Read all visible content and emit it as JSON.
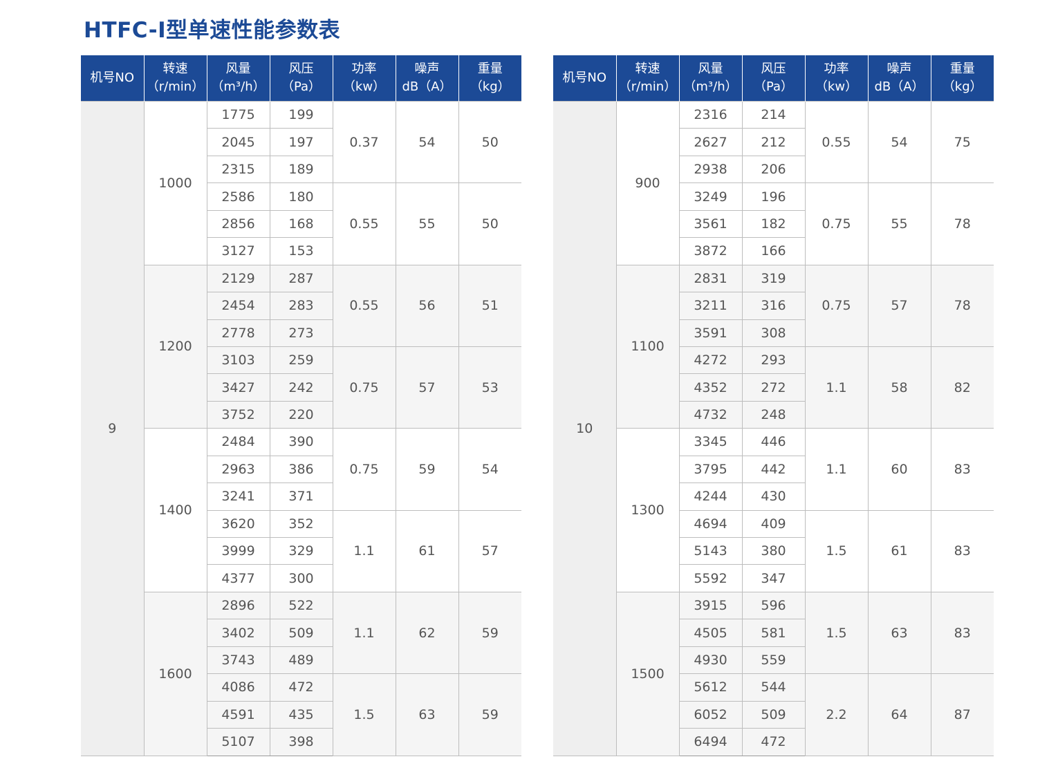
{
  "title": "HTFC-I型单速性能参数表",
  "header": [
    {
      "l1": "机号NO",
      "l2": ""
    },
    {
      "l1": "转速",
      "l2": "（r/min）"
    },
    {
      "l1": "风量",
      "l2": "（m³/h）"
    },
    {
      "l1": "风压",
      "l2": "（Pa）"
    },
    {
      "l1": "功率",
      "l2": "（kw）"
    },
    {
      "l1": "噪声",
      "l2": "dB（A）"
    },
    {
      "l1": "重量",
      "l2": "（kg）"
    }
  ],
  "colors": {
    "header_bg": "#1c4a96",
    "title": "#1c4a96"
  },
  "tables": [
    {
      "machine_no": "9",
      "speeds": [
        {
          "rpm": "1000",
          "groups": [
            {
              "power": "0.37",
              "noise": "54",
              "weight": "50",
              "rows": [
                [
                  "1775",
                  "199"
                ],
                [
                  "2045",
                  "197"
                ],
                [
                  "2315",
                  "189"
                ]
              ]
            },
            {
              "power": "0.55",
              "noise": "55",
              "weight": "50",
              "rows": [
                [
                  "2586",
                  "180"
                ],
                [
                  "2856",
                  "168"
                ],
                [
                  "3127",
                  "153"
                ]
              ]
            }
          ]
        },
        {
          "rpm": "1200",
          "groups": [
            {
              "power": "0.55",
              "noise": "56",
              "weight": "51",
              "rows": [
                [
                  "2129",
                  "287"
                ],
                [
                  "2454",
                  "283"
                ],
                [
                  "2778",
                  "273"
                ]
              ]
            },
            {
              "power": "0.75",
              "noise": "57",
              "weight": "53",
              "rows": [
                [
                  "3103",
                  "259"
                ],
                [
                  "3427",
                  "242"
                ],
                [
                  "3752",
                  "220"
                ]
              ]
            }
          ]
        },
        {
          "rpm": "1400",
          "groups": [
            {
              "power": "0.75",
              "noise": "59",
              "weight": "54",
              "rows": [
                [
                  "2484",
                  "390"
                ],
                [
                  "2963",
                  "386"
                ],
                [
                  "3241",
                  "371"
                ]
              ]
            },
            {
              "power": "1.1",
              "noise": "61",
              "weight": "57",
              "rows": [
                [
                  "3620",
                  "352"
                ],
                [
                  "3999",
                  "329"
                ],
                [
                  "4377",
                  "300"
                ]
              ]
            }
          ]
        },
        {
          "rpm": "1600",
          "groups": [
            {
              "power": "1.1",
              "noise": "62",
              "weight": "59",
              "rows": [
                [
                  "2896",
                  "522"
                ],
                [
                  "3402",
                  "509"
                ],
                [
                  "3743",
                  "489"
                ]
              ]
            },
            {
              "power": "1.5",
              "noise": "63",
              "weight": "59",
              "rows": [
                [
                  "4086",
                  "472"
                ],
                [
                  "4591",
                  "435"
                ],
                [
                  "5107",
                  "398"
                ]
              ]
            }
          ]
        }
      ]
    },
    {
      "machine_no": "10",
      "speeds": [
        {
          "rpm": "900",
          "groups": [
            {
              "power": "0.55",
              "noise": "54",
              "weight": "75",
              "rows": [
                [
                  "2316",
                  "214"
                ],
                [
                  "2627",
                  "212"
                ],
                [
                  "2938",
                  "206"
                ]
              ]
            },
            {
              "power": "0.75",
              "noise": "55",
              "weight": "78",
              "rows": [
                [
                  "3249",
                  "196"
                ],
                [
                  "3561",
                  "182"
                ],
                [
                  "3872",
                  "166"
                ]
              ]
            }
          ]
        },
        {
          "rpm": "1100",
          "groups": [
            {
              "power": "0.75",
              "noise": "57",
              "weight": "78",
              "rows": [
                [
                  "2831",
                  "319"
                ],
                [
                  "3211",
                  "316"
                ],
                [
                  "3591",
                  "308"
                ]
              ]
            },
            {
              "power": "1.1",
              "noise": "58",
              "weight": "82",
              "rows": [
                [
                  "4272",
                  "293"
                ],
                [
                  "4352",
                  "272"
                ],
                [
                  "4732",
                  "248"
                ]
              ]
            }
          ]
        },
        {
          "rpm": "1300",
          "groups": [
            {
              "power": "1.1",
              "noise": "60",
              "weight": "83",
              "rows": [
                [
                  "3345",
                  "446"
                ],
                [
                  "3795",
                  "442"
                ],
                [
                  "4244",
                  "430"
                ]
              ]
            },
            {
              "power": "1.5",
              "noise": "61",
              "weight": "83",
              "rows": [
                [
                  "4694",
                  "409"
                ],
                [
                  "5143",
                  "380"
                ],
                [
                  "5592",
                  "347"
                ]
              ]
            }
          ]
        },
        {
          "rpm": "1500",
          "groups": [
            {
              "power": "1.5",
              "noise": "63",
              "weight": "83",
              "rows": [
                [
                  "3915",
                  "596"
                ],
                [
                  "4505",
                  "581"
                ],
                [
                  "4930",
                  "559"
                ]
              ]
            },
            {
              "power": "2.2",
              "noise": "64",
              "weight": "87",
              "rows": [
                [
                  "5612",
                  "544"
                ],
                [
                  "6052",
                  "509"
                ],
                [
                  "6494",
                  "472"
                ]
              ]
            }
          ]
        }
      ]
    }
  ]
}
